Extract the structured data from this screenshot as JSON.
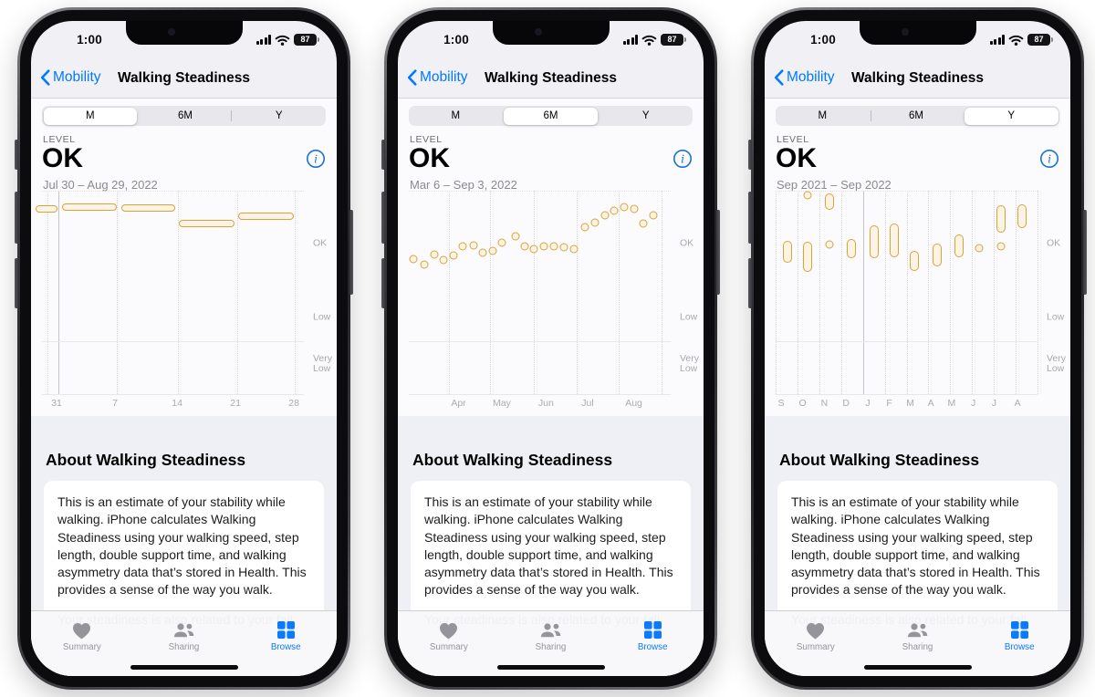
{
  "shared": {
    "status": {
      "time": "1:00",
      "battery_percent": "87"
    },
    "nav": {
      "back_label": "Mobility",
      "title": "Walking Steadiness"
    },
    "segments": [
      "M",
      "6M",
      "Y"
    ],
    "level": {
      "label": "LEVEL",
      "value": "OK"
    },
    "about": {
      "heading": "About Walking Steadiness",
      "body": "This is an estimate of your stability while walking. iPhone calculates Walking Steadiness using your walking speed, step length, double support time, and walking asymmetry data that’s stored in Health. This provides a sense of the way you walk.",
      "body_more": "Your steadiness is also related to your fall"
    },
    "tabbar": [
      {
        "label": "Summary",
        "icon": "heart-icon",
        "active": false
      },
      {
        "label": "Sharing",
        "icon": "people-icon",
        "active": false
      },
      {
        "label": "Browse",
        "icon": "grid-icon",
        "active": true
      }
    ],
    "colors": {
      "accent": "#007aff",
      "chart_stroke": "#d9a23e",
      "chart_fill": "#fcf4e3",
      "active_tab": "#0a7aff"
    }
  },
  "phones": [
    {
      "selected_segment": "M",
      "date_range": "Jul 30 – Aug 29, 2022",
      "chart_data": {
        "type": "horizontal-range-bars",
        "x_ticks": [
          {
            "label": "31",
            "x": 0.056
          },
          {
            "label": "7",
            "x": 0.279
          },
          {
            "label": "14",
            "x": 0.516
          },
          {
            "label": "21",
            "x": 0.739
          },
          {
            "label": "28",
            "x": 0.962
          }
        ],
        "gridlines_x": [
          {
            "x": 0.02,
            "style": "dotted"
          },
          {
            "x": 0.062,
            "style": "solid"
          },
          {
            "x": 0.285,
            "style": "dotted"
          },
          {
            "x": 0.52,
            "style": "dotted"
          },
          {
            "x": 0.745,
            "style": "dotted"
          },
          {
            "x": 0.965,
            "style": "dotted"
          }
        ],
        "gridlines_y": [
          {
            "y": 0.0,
            "style": "dotted"
          },
          {
            "y": 0.74,
            "style": "solid"
          },
          {
            "y": 1.0,
            "style": "solid"
          }
        ],
        "y_labels": [
          {
            "label": "OK",
            "y": 0.26
          },
          {
            "label": "Low",
            "y": 0.625
          },
          {
            "label": "Very Low",
            "y": 0.85
          }
        ],
        "marks": [
          {
            "kind": "hbar",
            "x0": -0.025,
            "x1": 0.058,
            "y": 0.09,
            "band": "OK"
          },
          {
            "kind": "hbar",
            "x0": 0.075,
            "x1": 0.285,
            "y": 0.08,
            "band": "OK"
          },
          {
            "kind": "hbar",
            "x0": 0.303,
            "x1": 0.51,
            "y": 0.085,
            "band": "OK"
          },
          {
            "kind": "hbar",
            "x0": 0.523,
            "x1": 0.735,
            "y": 0.161,
            "band": "OK"
          },
          {
            "kind": "hbar",
            "x0": 0.749,
            "x1": 0.962,
            "y": 0.126,
            "band": "OK"
          }
        ]
      }
    },
    {
      "selected_segment": "6M",
      "date_range": "Mar 6 – Sep 3, 2022",
      "chart_data": {
        "type": "scatter",
        "x_ticks": [
          {
            "label": "Apr",
            "x": 0.19
          },
          {
            "label": "May",
            "x": 0.355
          },
          {
            "label": "Jun",
            "x": 0.524
          },
          {
            "label": "Jul",
            "x": 0.683
          },
          {
            "label": "Aug",
            "x": 0.859
          }
        ],
        "gridlines_x": [
          {
            "x": 0.152,
            "style": "dotted"
          },
          {
            "x": 0.31,
            "style": "dotted"
          },
          {
            "x": 0.476,
            "style": "dotted"
          },
          {
            "x": 0.64,
            "style": "dotted"
          },
          {
            "x": 0.803,
            "style": "dotted"
          },
          {
            "x": 0.966,
            "style": "dotted"
          }
        ],
        "gridlines_y": [
          {
            "y": 0.0,
            "style": "dotted"
          },
          {
            "y": 0.74,
            "style": "solid"
          },
          {
            "y": 1.0,
            "style": "solid"
          }
        ],
        "y_labels": [
          {
            "label": "OK",
            "y": 0.26
          },
          {
            "label": "Low",
            "y": 0.625
          },
          {
            "label": "Very Low",
            "y": 0.85
          }
        ],
        "marks": [
          {
            "kind": "dot",
            "x": 0.017,
            "y": 0.336,
            "band": "OK"
          },
          {
            "kind": "dot",
            "x": 0.059,
            "y": 0.363,
            "band": "OK"
          },
          {
            "kind": "dot",
            "x": 0.097,
            "y": 0.314,
            "band": "OK"
          },
          {
            "kind": "dot",
            "x": 0.131,
            "y": 0.341,
            "band": "OK"
          },
          {
            "kind": "dot",
            "x": 0.169,
            "y": 0.318,
            "band": "OK"
          },
          {
            "kind": "dot",
            "x": 0.207,
            "y": 0.274,
            "band": "OK"
          },
          {
            "kind": "dot",
            "x": 0.248,
            "y": 0.269,
            "band": "OK"
          },
          {
            "kind": "dot",
            "x": 0.283,
            "y": 0.305,
            "band": "OK"
          },
          {
            "kind": "dot",
            "x": 0.321,
            "y": 0.296,
            "band": "OK"
          },
          {
            "kind": "dot",
            "x": 0.355,
            "y": 0.256,
            "band": "OK"
          },
          {
            "kind": "dot",
            "x": 0.407,
            "y": 0.224,
            "band": "OK"
          },
          {
            "kind": "dot",
            "x": 0.441,
            "y": 0.274,
            "band": "OK"
          },
          {
            "kind": "dot",
            "x": 0.479,
            "y": 0.287,
            "band": "OK"
          },
          {
            "kind": "dot",
            "x": 0.517,
            "y": 0.274,
            "band": "OK"
          },
          {
            "kind": "dot",
            "x": 0.555,
            "y": 0.274,
            "band": "OK"
          },
          {
            "kind": "dot",
            "x": 0.593,
            "y": 0.278,
            "band": "OK"
          },
          {
            "kind": "dot",
            "x": 0.631,
            "y": 0.287,
            "band": "OK"
          },
          {
            "kind": "dot",
            "x": 0.672,
            "y": 0.179,
            "band": "OK"
          },
          {
            "kind": "dot",
            "x": 0.71,
            "y": 0.157,
            "band": "OK"
          },
          {
            "kind": "dot",
            "x": 0.748,
            "y": 0.121,
            "band": "OK"
          },
          {
            "kind": "dot",
            "x": 0.783,
            "y": 0.099,
            "band": "OK"
          },
          {
            "kind": "dot",
            "x": 0.821,
            "y": 0.081,
            "band": "OK"
          },
          {
            "kind": "dot",
            "x": 0.859,
            "y": 0.09,
            "band": "OK"
          },
          {
            "kind": "dot",
            "x": 0.897,
            "y": 0.161,
            "band": "OK"
          },
          {
            "kind": "dot",
            "x": 0.934,
            "y": 0.121,
            "band": "OK"
          }
        ]
      }
    },
    {
      "selected_segment": "Y",
      "date_range": "Sep 2021 – Sep 2022",
      "chart_data": {
        "type": "vertical-range-bars",
        "x_ticks": [
          {
            "label": "S",
            "x": 0.021
          },
          {
            "label": "O",
            "x": 0.103
          },
          {
            "label": "N",
            "x": 0.186
          },
          {
            "label": "D",
            "x": 0.269
          },
          {
            "label": "J",
            "x": 0.352
          },
          {
            "label": "F",
            "x": 0.434
          },
          {
            "label": "M",
            "x": 0.514
          },
          {
            "label": "A",
            "x": 0.593
          },
          {
            "label": "M",
            "x": 0.672
          },
          {
            "label": "J",
            "x": 0.755
          },
          {
            "label": "J",
            "x": 0.834
          },
          {
            "label": "A",
            "x": 0.924
          }
        ],
        "gridlines_x": [
          {
            "x": 0.0,
            "style": "dotted"
          },
          {
            "x": 0.083,
            "style": "dotted"
          },
          {
            "x": 0.167,
            "style": "dotted"
          },
          {
            "x": 0.25,
            "style": "dotted"
          },
          {
            "x": 0.333,
            "style": "solid"
          },
          {
            "x": 0.417,
            "style": "dotted"
          },
          {
            "x": 0.5,
            "style": "dotted"
          },
          {
            "x": 0.583,
            "style": "dotted"
          },
          {
            "x": 0.667,
            "style": "dotted"
          },
          {
            "x": 0.75,
            "style": "dotted"
          },
          {
            "x": 0.833,
            "style": "dotted"
          },
          {
            "x": 0.917,
            "style": "dotted"
          },
          {
            "x": 1.0,
            "style": "dotted"
          }
        ],
        "gridlines_y": [
          {
            "y": 0.0,
            "style": "dotted"
          },
          {
            "y": 0.74,
            "style": "solid"
          },
          {
            "y": 1.0,
            "style": "solid"
          }
        ],
        "y_labels": [
          {
            "label": "OK",
            "y": 0.26
          },
          {
            "label": "Low",
            "y": 0.625
          },
          {
            "label": "Very Low",
            "y": 0.85
          }
        ],
        "marks": [
          {
            "kind": "vbar",
            "x": 0.045,
            "y0": 0.247,
            "y1": 0.355,
            "band": "OK"
          },
          {
            "kind": "dot",
            "x": 0.121,
            "y": 0.022,
            "band": "OK"
          },
          {
            "kind": "vbar",
            "x": 0.121,
            "y0": 0.251,
            "y1": 0.399,
            "band": "OK"
          },
          {
            "kind": "vbar",
            "x": 0.207,
            "y0": 0.013,
            "y1": 0.094,
            "band": "OK"
          },
          {
            "kind": "dot",
            "x": 0.207,
            "y": 0.265,
            "band": "OK"
          },
          {
            "kind": "vbar",
            "x": 0.29,
            "y0": 0.238,
            "y1": 0.332,
            "band": "OK"
          },
          {
            "kind": "vbar",
            "x": 0.376,
            "y0": 0.17,
            "y1": 0.332,
            "band": "OK"
          },
          {
            "kind": "vbar",
            "x": 0.452,
            "y0": 0.161,
            "y1": 0.327,
            "band": "OK"
          },
          {
            "kind": "vbar",
            "x": 0.531,
            "y0": 0.296,
            "y1": 0.395,
            "band": "OK"
          },
          {
            "kind": "vbar",
            "x": 0.617,
            "y0": 0.26,
            "y1": 0.372,
            "band": "OK"
          },
          {
            "kind": "vbar",
            "x": 0.7,
            "y0": 0.215,
            "y1": 0.327,
            "band": "OK"
          },
          {
            "kind": "dot",
            "x": 0.776,
            "y": 0.283,
            "band": "OK"
          },
          {
            "kind": "vbar",
            "x": 0.859,
            "y0": 0.072,
            "y1": 0.206,
            "band": "OK"
          },
          {
            "kind": "dot",
            "x": 0.859,
            "y": 0.274,
            "band": "OK"
          },
          {
            "kind": "vbar",
            "x": 0.941,
            "y0": 0.067,
            "y1": 0.184,
            "band": "OK"
          }
        ]
      }
    }
  ]
}
